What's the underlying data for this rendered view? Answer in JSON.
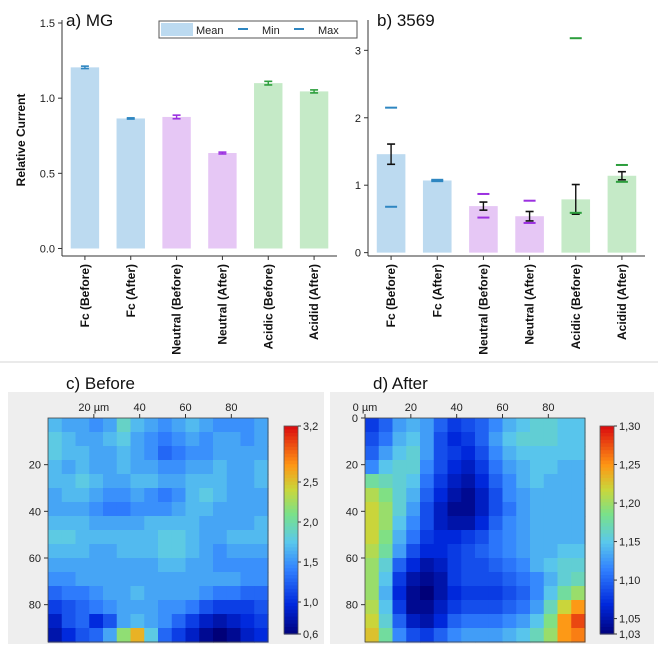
{
  "chart_data": [
    {
      "type": "bar",
      "title": "a) MG",
      "ylabel": "Relative Current",
      "ylim": [
        -0.05,
        1.52
      ],
      "yticks": [
        "0.0",
        "0.5",
        "1.0",
        "1.5"
      ],
      "ytick_values": [
        0,
        0.5,
        1.0,
        1.5
      ],
      "categories": [
        "Fc (Before)",
        "Fc (After)",
        "Neutral (Before)",
        "Neutral (After)",
        "Acidic (Before)",
        "Acidid (After)"
      ],
      "values": [
        1.205,
        0.865,
        0.875,
        0.635,
        1.1,
        1.045
      ],
      "errors": [
        0.008,
        0.004,
        0.012,
        0.006,
        0.012,
        0.01
      ],
      "group_colors": [
        "#bcdaf0",
        "#bcdaf0",
        "#e6c7f5",
        "#e6c7f5",
        "#c5eac7",
        "#c5eac7"
      ],
      "marker_colors": [
        "#2e86c1",
        "#2e86c1",
        "#9b30e0",
        "#9b30e0",
        "#2c9e3c",
        "#2c9e3c"
      ],
      "legend": {
        "position": "top-right",
        "labels": [
          "Mean",
          "Min",
          "Max"
        ]
      }
    },
    {
      "type": "bar",
      "title": "b) 3569",
      "ylim": [
        -0.05,
        3.45
      ],
      "yticks": [
        "0",
        "1",
        "2",
        "3"
      ],
      "ytick_values": [
        0,
        1,
        2,
        3
      ],
      "categories": [
        "Fc (Before)",
        "Fc (After)",
        "Neutral (Before)",
        "Neutral (After)",
        "Acidic (Before)",
        "Acidid (After)"
      ],
      "values": [
        1.46,
        1.07,
        0.69,
        0.54,
        0.79,
        1.14
      ],
      "errors": [
        0.15,
        0.01,
        0.06,
        0.07,
        0.22,
        0.06
      ],
      "min": [
        0.68,
        1.06,
        0.52,
        0.44,
        0.59,
        1.05
      ],
      "max": [
        2.15,
        1.08,
        0.87,
        0.77,
        3.18,
        1.3
      ],
      "group_colors": [
        "#bcdaf0",
        "#bcdaf0",
        "#e6c7f5",
        "#e6c7f5",
        "#c5eac7",
        "#c5eac7"
      ],
      "marker_colors": [
        "#2e86c1",
        "#2e86c1",
        "#9b30e0",
        "#9b30e0",
        "#2c9e3c",
        "#2c9e3c"
      ]
    },
    {
      "type": "heatmap",
      "title": "c) Before",
      "xticks": [
        "20 µm",
        "40",
        "60",
        "80"
      ],
      "xtick_values": [
        20,
        40,
        60,
        80
      ],
      "yticks": [
        "20",
        "40",
        "60",
        "80"
      ],
      "ytick_values": [
        20,
        40,
        60,
        80
      ],
      "range_um": [
        0,
        96
      ],
      "colorbar": {
        "ticks": [
          "3,2",
          "2,5",
          "2,0",
          "1,5",
          "1,0",
          "0,6"
        ],
        "values": [
          3.2,
          2.5,
          2.0,
          1.5,
          1.0,
          0.6
        ],
        "min": 0.6,
        "max": 3.2
      },
      "grid": [
        [
          1.7,
          1.6,
          1.6,
          1.5,
          1.6,
          1.9,
          1.7,
          1.6,
          1.5,
          1.6,
          1.7,
          1.6,
          1.5,
          1.5,
          1.5,
          1.6
        ],
        [
          1.8,
          1.7,
          1.6,
          1.6,
          1.7,
          1.8,
          1.6,
          1.5,
          1.4,
          1.5,
          1.6,
          1.5,
          1.6,
          1.6,
          1.5,
          1.6
        ],
        [
          1.8,
          1.7,
          1.7,
          1.6,
          1.6,
          1.7,
          1.6,
          1.5,
          1.3,
          1.4,
          1.5,
          1.5,
          1.6,
          1.6,
          1.6,
          1.6
        ],
        [
          1.7,
          1.6,
          1.7,
          1.6,
          1.6,
          1.7,
          1.6,
          1.6,
          1.5,
          1.5,
          1.6,
          1.6,
          1.7,
          1.6,
          1.6,
          1.7
        ],
        [
          1.7,
          1.7,
          1.8,
          1.7,
          1.6,
          1.6,
          1.7,
          1.7,
          1.6,
          1.6,
          1.7,
          1.7,
          1.7,
          1.6,
          1.6,
          1.7
        ],
        [
          1.6,
          1.7,
          1.7,
          1.6,
          1.5,
          1.5,
          1.6,
          1.5,
          1.4,
          1.5,
          1.7,
          1.8,
          1.7,
          1.6,
          1.6,
          1.6
        ],
        [
          1.6,
          1.6,
          1.6,
          1.5,
          1.4,
          1.4,
          1.5,
          1.5,
          1.5,
          1.6,
          1.7,
          1.7,
          1.6,
          1.6,
          1.6,
          1.6
        ],
        [
          1.7,
          1.7,
          1.7,
          1.6,
          1.6,
          1.6,
          1.6,
          1.7,
          1.7,
          1.7,
          1.7,
          1.6,
          1.6,
          1.6,
          1.6,
          1.7
        ],
        [
          1.8,
          1.8,
          1.7,
          1.7,
          1.7,
          1.7,
          1.7,
          1.7,
          1.8,
          1.8,
          1.7,
          1.6,
          1.6,
          1.7,
          1.7,
          1.7
        ],
        [
          1.7,
          1.7,
          1.7,
          1.6,
          1.6,
          1.7,
          1.7,
          1.7,
          1.8,
          1.8,
          1.7,
          1.6,
          1.5,
          1.6,
          1.6,
          1.6
        ],
        [
          1.6,
          1.6,
          1.6,
          1.6,
          1.6,
          1.6,
          1.6,
          1.6,
          1.7,
          1.7,
          1.6,
          1.6,
          1.5,
          1.5,
          1.5,
          1.5
        ],
        [
          1.5,
          1.5,
          1.6,
          1.6,
          1.6,
          1.6,
          1.6,
          1.6,
          1.6,
          1.6,
          1.6,
          1.6,
          1.6,
          1.6,
          1.5,
          1.5
        ],
        [
          1.3,
          1.4,
          1.4,
          1.5,
          1.6,
          1.6,
          1.7,
          1.6,
          1.6,
          1.6,
          1.6,
          1.5,
          1.4,
          1.4,
          1.3,
          1.3
        ],
        [
          1.1,
          1.2,
          1.3,
          1.4,
          1.5,
          1.6,
          1.6,
          1.6,
          1.5,
          1.5,
          1.4,
          1.2,
          1.1,
          1.1,
          1.1,
          1.2
        ],
        [
          0.9,
          1.2,
          1.3,
          1.0,
          1.2,
          1.6,
          1.7,
          1.6,
          1.5,
          1.3,
          1.1,
          0.9,
          0.8,
          0.9,
          1.0,
          1.1
        ],
        [
          0.8,
          1.0,
          1.2,
          1.3,
          1.6,
          2.2,
          2.6,
          1.8,
          1.3,
          1.1,
          0.9,
          0.7,
          0.6,
          0.7,
          0.9,
          1.0
        ]
      ]
    },
    {
      "type": "heatmap",
      "title": "d) After",
      "xticks": [
        "0 µm",
        "20",
        "40",
        "60",
        "80"
      ],
      "xtick_values": [
        0,
        20,
        40,
        60,
        80
      ],
      "yticks": [
        "0",
        "20",
        "40",
        "60",
        "80"
      ],
      "ytick_values": [
        0,
        20,
        40,
        60,
        80
      ],
      "range_um": [
        0,
        96
      ],
      "colorbar": {
        "ticks": [
          "1,30",
          "1,25",
          "1,20",
          "1,15",
          "1,10",
          "1,05",
          "1,03"
        ],
        "values": [
          1.3,
          1.25,
          1.2,
          1.15,
          1.1,
          1.05,
          1.03
        ],
        "min": 1.03,
        "max": 1.3
      },
      "grid": [
        [
          1.08,
          1.1,
          1.13,
          1.14,
          1.13,
          1.1,
          1.08,
          1.09,
          1.1,
          1.12,
          1.14,
          1.15,
          1.16,
          1.16,
          1.15,
          1.15
        ],
        [
          1.09,
          1.11,
          1.14,
          1.15,
          1.13,
          1.09,
          1.07,
          1.08,
          1.1,
          1.13,
          1.15,
          1.16,
          1.16,
          1.16,
          1.15,
          1.15
        ],
        [
          1.1,
          1.13,
          1.15,
          1.16,
          1.13,
          1.09,
          1.08,
          1.07,
          1.09,
          1.12,
          1.14,
          1.15,
          1.15,
          1.15,
          1.15,
          1.15
        ],
        [
          1.12,
          1.15,
          1.16,
          1.16,
          1.12,
          1.09,
          1.07,
          1.06,
          1.08,
          1.11,
          1.13,
          1.14,
          1.15,
          1.15,
          1.14,
          1.14
        ],
        [
          1.18,
          1.17,
          1.16,
          1.15,
          1.11,
          1.08,
          1.06,
          1.05,
          1.07,
          1.1,
          1.12,
          1.14,
          1.15,
          1.14,
          1.14,
          1.14
        ],
        [
          1.21,
          1.19,
          1.16,
          1.14,
          1.1,
          1.07,
          1.05,
          1.04,
          1.06,
          1.09,
          1.12,
          1.13,
          1.14,
          1.14,
          1.14,
          1.14
        ],
        [
          1.22,
          1.2,
          1.16,
          1.13,
          1.09,
          1.06,
          1.04,
          1.04,
          1.06,
          1.09,
          1.11,
          1.13,
          1.14,
          1.14,
          1.14,
          1.14
        ],
        [
          1.22,
          1.2,
          1.15,
          1.12,
          1.09,
          1.06,
          1.05,
          1.05,
          1.07,
          1.1,
          1.12,
          1.13,
          1.14,
          1.14,
          1.14,
          1.14
        ],
        [
          1.22,
          1.19,
          1.14,
          1.11,
          1.08,
          1.07,
          1.07,
          1.08,
          1.09,
          1.11,
          1.12,
          1.13,
          1.14,
          1.14,
          1.14,
          1.14
        ],
        [
          1.21,
          1.18,
          1.13,
          1.09,
          1.07,
          1.07,
          1.08,
          1.09,
          1.1,
          1.11,
          1.12,
          1.13,
          1.14,
          1.14,
          1.15,
          1.15
        ],
        [
          1.2,
          1.16,
          1.1,
          1.07,
          1.05,
          1.06,
          1.08,
          1.09,
          1.09,
          1.1,
          1.11,
          1.12,
          1.14,
          1.15,
          1.16,
          1.16
        ],
        [
          1.2,
          1.15,
          1.08,
          1.05,
          1.04,
          1.05,
          1.08,
          1.09,
          1.09,
          1.09,
          1.1,
          1.11,
          1.12,
          1.14,
          1.16,
          1.17
        ],
        [
          1.2,
          1.14,
          1.07,
          1.04,
          1.03,
          1.05,
          1.07,
          1.08,
          1.08,
          1.08,
          1.09,
          1.1,
          1.12,
          1.15,
          1.18,
          1.2
        ],
        [
          1.21,
          1.15,
          1.08,
          1.04,
          1.04,
          1.06,
          1.08,
          1.09,
          1.09,
          1.09,
          1.1,
          1.11,
          1.13,
          1.17,
          1.22,
          1.25
        ],
        [
          1.22,
          1.16,
          1.1,
          1.06,
          1.05,
          1.07,
          1.1,
          1.11,
          1.11,
          1.11,
          1.12,
          1.13,
          1.15,
          1.19,
          1.25,
          1.28
        ],
        [
          1.23,
          1.18,
          1.12,
          1.09,
          1.08,
          1.1,
          1.12,
          1.13,
          1.13,
          1.13,
          1.14,
          1.15,
          1.17,
          1.2,
          1.25,
          1.26
        ]
      ]
    }
  ]
}
